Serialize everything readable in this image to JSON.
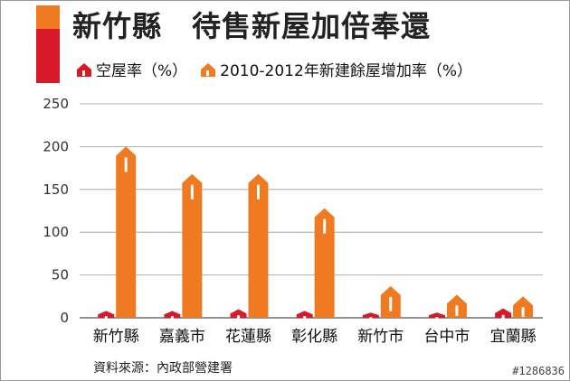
{
  "title": "新竹縣　待售新屋加倍奉還",
  "legend": [
    {
      "label": "空屋率（%）",
      "color": "#d7192a"
    },
    {
      "label": "2010-2012年新建餘屋增加率（%）",
      "color": "#f07a22"
    }
  ],
  "source": "資料來源：內政部營建署",
  "watermark": "#1286836",
  "colors": {
    "accent_dark": "#d7192a",
    "accent_orange": "#f07a22",
    "grid": "#999999"
  },
  "chart_data": {
    "type": "bar",
    "title": "新竹縣　待售新屋加倍奉還",
    "xlabel": "",
    "ylabel": "",
    "ylim": [
      0,
      250
    ],
    "yticks": [
      0,
      50,
      100,
      150,
      200,
      250
    ],
    "grid": true,
    "legend_position": "top",
    "categories": [
      "新竹縣",
      "嘉義市",
      "花蓮縣",
      "彰化縣",
      "新竹市",
      "台中市",
      "宜蘭縣"
    ],
    "series": [
      {
        "name": "空屋率（%）",
        "values": [
          8,
          8,
          10,
          8,
          6,
          6,
          11
        ]
      },
      {
        "name": "2010-2012年新建餘屋增加率（%）",
        "values": [
          200,
          168,
          168,
          128,
          37,
          27,
          25
        ]
      }
    ]
  }
}
